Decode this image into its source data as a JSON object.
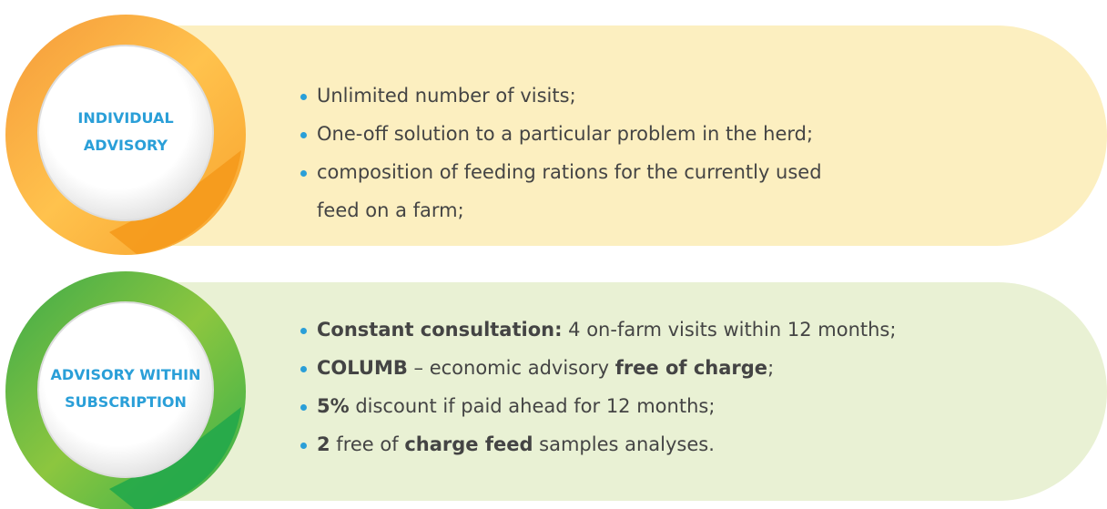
{
  "cards": [
    {
      "title": [
        "INDIVIDUAL",
        "ADVISORY"
      ],
      "items": [
        [
          {
            "text": "Unlimited number of visits;"
          }
        ],
        [
          {
            "text": "One-off solution to a particular problem in the herd;"
          }
        ],
        [
          {
            "text": "composition of feeding rations for the currently used feed on a farm;"
          }
        ]
      ]
    },
    {
      "title": [
        "ADVISORY WITHIN",
        "SUBSCRIPTION"
      ],
      "items": [
        [
          {
            "text": "Constant consultation:",
            "bold": true
          },
          {
            "text": " 4 on-farm visits within 12 months;"
          }
        ],
        [
          {
            "text": "COLUMB",
            "bold": true
          },
          {
            "text": " – economic advisory "
          },
          {
            "text": "free of charge",
            "bold": true
          },
          {
            "text": ";"
          }
        ],
        [
          {
            "text": "5%",
            "bold": true
          },
          {
            "text": " discount if paid ahead for 12 months;"
          }
        ],
        [
          {
            "text": "2",
            "bold": true
          },
          {
            "text": " free of "
          },
          {
            "text": "charge feed",
            "bold": true
          },
          {
            "text": " samples analyses."
          }
        ]
      ]
    }
  ]
}
